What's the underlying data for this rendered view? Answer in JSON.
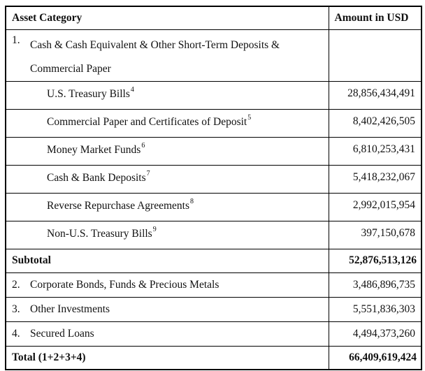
{
  "colors": {
    "border": "#000000",
    "text": "#111111",
    "background": "#ffffff"
  },
  "table": {
    "header": {
      "category": "Asset Category",
      "amount": "Amount in USD"
    },
    "rows": [
      {
        "number": "1.",
        "label": "Cash & Cash Equivalent & Other Short-Term Deposits & Commercial Paper",
        "amount": ""
      },
      {
        "label": "U.S. Treasury Bills",
        "footnote": "4",
        "amount": "28,856,434,491"
      },
      {
        "label": "Commercial Paper and Certificates of Deposit",
        "footnote": "5",
        "amount": "8,402,426,505"
      },
      {
        "label": "Money Market Funds",
        "footnote": "6",
        "amount": "6,810,253,431"
      },
      {
        "label": "Cash & Bank Deposits",
        "footnote": "7",
        "amount": "5,418,232,067"
      },
      {
        "label": "Reverse Repurchase Agreements",
        "footnote": "8",
        "amount": "2,992,015,954"
      },
      {
        "label": "Non-U.S. Treasury Bills",
        "footnote": "9",
        "amount": "397,150,678"
      },
      {
        "label": "Subtotal",
        "amount": "52,876,513,126"
      },
      {
        "number": "2.",
        "label": "Corporate Bonds, Funds & Precious Metals",
        "amount": "3,486,896,735"
      },
      {
        "number": "3.",
        "label": "Other Investments",
        "amount": "5,551,836,303"
      },
      {
        "number": "4.",
        "label": "Secured Loans",
        "amount": "4,494,373,260"
      },
      {
        "label": "Total (1+2+3+4)",
        "amount": "66,409,619,424"
      }
    ]
  }
}
